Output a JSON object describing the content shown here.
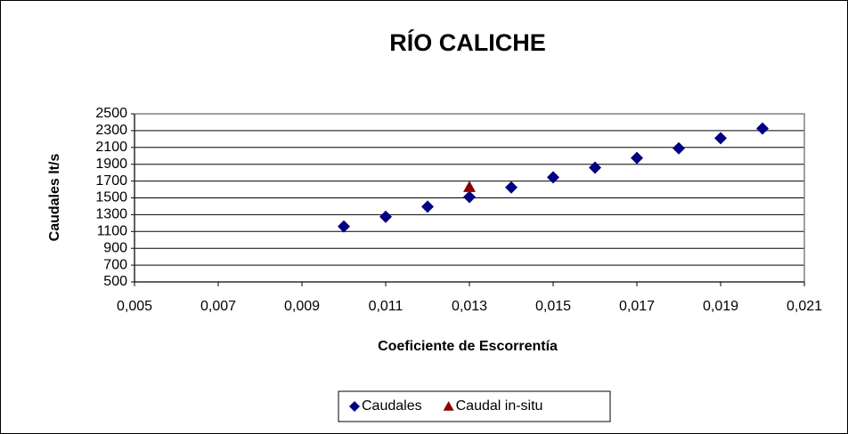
{
  "chart_data": {
    "type": "scatter",
    "title": "RÍO CALICHE",
    "xlabel": "Coeficiente de Escorrentía",
    "ylabel": "Caudales lt/s",
    "series": [
      {
        "name": "Caudales",
        "color": "#000080",
        "marker": "diamond",
        "x": [
          0.01,
          0.011,
          0.012,
          0.013,
          0.014,
          0.015,
          0.016,
          0.017,
          0.018,
          0.019,
          0.02
        ],
        "values": [
          1160,
          1275,
          1395,
          1510,
          1625,
          1745,
          1860,
          1975,
          2090,
          2210,
          2325
        ]
      },
      {
        "name": "Caudal in-situ",
        "color": "#8b0000",
        "marker": "triangle",
        "x": [
          0.013
        ],
        "values": [
          1630
        ]
      }
    ],
    "xlim": [
      0.005,
      0.021
    ],
    "xticks": [
      {
        "value": 0.005,
        "label": "0,005"
      },
      {
        "value": 0.007,
        "label": "0,007"
      },
      {
        "value": 0.009,
        "label": "0,009"
      },
      {
        "value": 0.011,
        "label": "0,011"
      },
      {
        "value": 0.013,
        "label": "0,013"
      },
      {
        "value": 0.015,
        "label": "0,015"
      },
      {
        "value": 0.017,
        "label": "0,017"
      },
      {
        "value": 0.019,
        "label": "0,019"
      },
      {
        "value": 0.021,
        "label": "0,021"
      }
    ],
    "ylim": [
      500,
      2500
    ],
    "yticks": [
      500,
      700,
      900,
      1100,
      1300,
      1500,
      1700,
      1900,
      2100,
      2300,
      2500
    ],
    "grid": true,
    "legend": "bottom"
  }
}
